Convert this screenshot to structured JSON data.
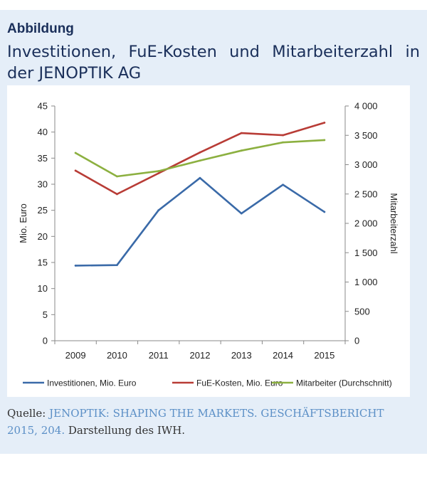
{
  "figure": {
    "label": "Abbildung",
    "title": "Investitionen, FuE-Kosten und Mitarbeiterzahl in der JENOPTIK AG"
  },
  "source": {
    "prefix": "Quelle:",
    "link_text": "JENOPTIK: SHAPING THE MARKETS. GESCHÄFTSBERICHT 2015, 204.",
    "suffix": "Darstellung des IWH."
  },
  "colors": {
    "investitionen": "#3a6aa8",
    "fue_kosten": "#b83c36",
    "mitarbeiter": "#8cb040",
    "card_background": "#e5eef8"
  },
  "chart_data": {
    "type": "line",
    "title": "",
    "x": [
      "2009",
      "2010",
      "2011",
      "2012",
      "2013",
      "2014",
      "2015"
    ],
    "ylabel": "Mio. Euro",
    "ylim": [
      0,
      45
    ],
    "y_ticks": [
      "0",
      "5",
      "10",
      "15",
      "20",
      "25",
      "30",
      "35",
      "40",
      "45"
    ],
    "y2label": "Mitarbeiterzahl",
    "y2lim": [
      0,
      4000
    ],
    "y2_ticks": [
      "0",
      "500",
      "1 000",
      "1 500",
      "2 000",
      "2 500",
      "3 000",
      "3 500",
      "4 000"
    ],
    "grid": false,
    "legend_position": "bottom",
    "series": [
      {
        "name": "Investitionen, Mio. Euro",
        "axis": "left",
        "values": [
          14.4,
          14.5,
          25.0,
          31.2,
          24.4,
          29.9,
          24.7
        ]
      },
      {
        "name": "FuE-Kosten, Mio. Euro",
        "axis": "left",
        "values": [
          32.6,
          28.1,
          32.1,
          36.1,
          39.8,
          39.4,
          41.8
        ]
      },
      {
        "name": "Mitarbeiter (Durchschnitt)",
        "axis": "right",
        "values": [
          3200,
          2800,
          2890,
          3070,
          3240,
          3380,
          3420
        ]
      }
    ]
  }
}
